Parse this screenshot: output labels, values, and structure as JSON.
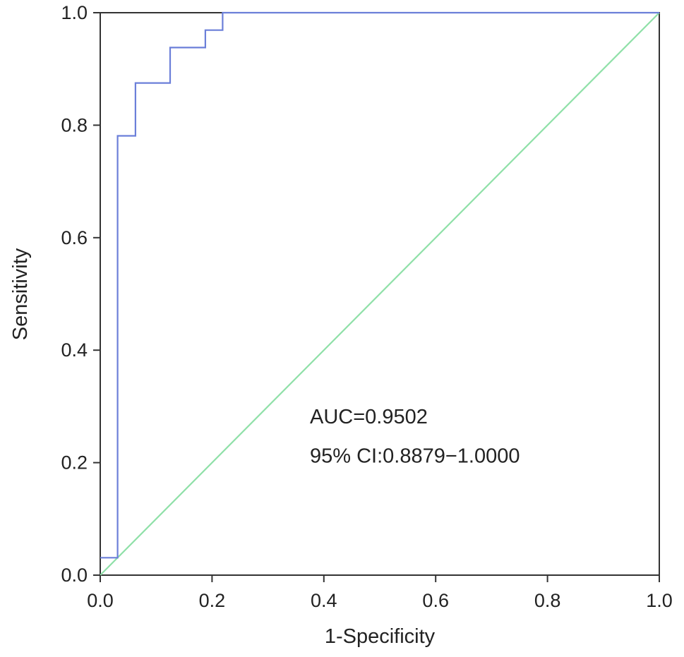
{
  "chart_data": {
    "type": "line",
    "title": "",
    "xlabel": "1-Specificity",
    "ylabel": "Sensitivity",
    "xlim": [
      0.0,
      1.0
    ],
    "ylim": [
      0.0,
      1.0
    ],
    "grid": false,
    "x_ticks": [
      "0.0",
      "0.2",
      "0.4",
      "0.6",
      "0.8",
      "1.0"
    ],
    "y_ticks": [
      "0.0",
      "0.2",
      "0.4",
      "0.6",
      "0.8",
      "1.0"
    ],
    "series": [
      {
        "name": "",
        "role": "roc-curve",
        "color": "#6b7fd9",
        "step": true,
        "x": [
          0.0,
          0.031,
          0.031,
          0.063,
          0.063,
          0.125,
          0.125,
          0.188,
          0.188,
          0.219,
          0.219,
          1.0
        ],
        "y": [
          0.031,
          0.031,
          0.781,
          0.781,
          0.875,
          0.875,
          0.938,
          0.938,
          0.969,
          0.969,
          1.0,
          1.0
        ]
      },
      {
        "name": "",
        "role": "reference-diagonal",
        "color": "#8fe0a8",
        "step": false,
        "x": [
          0.0,
          1.0
        ],
        "y": [
          0.0,
          1.0
        ]
      }
    ],
    "annotations": [
      {
        "id": "auc",
        "text": "AUC=0.9502",
        "x": 0.375,
        "y": 0.27
      },
      {
        "id": "ci",
        "text": "95% CI:0.8879−1.0000",
        "x": 0.375,
        "y": 0.2
      }
    ]
  }
}
